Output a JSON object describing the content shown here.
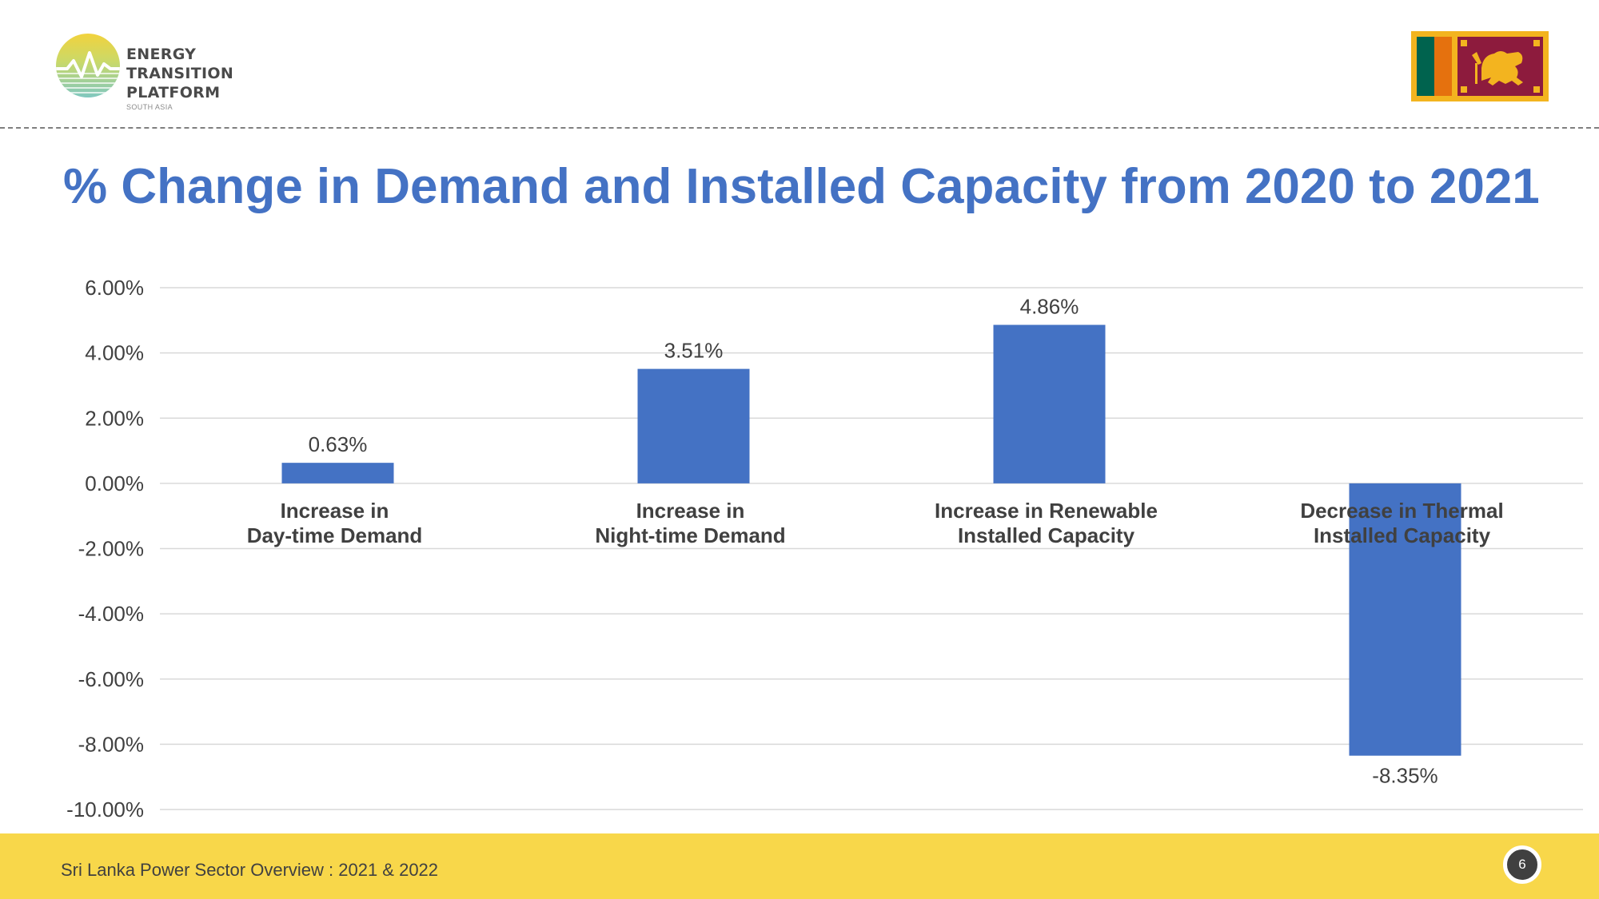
{
  "logo": {
    "line1": "ENERGY TRANSITION",
    "line2": "PLATFORM",
    "line3": "SOUTH ASIA"
  },
  "colors": {
    "accent": "#4472c4",
    "footer": "#f8d74a",
    "text": "#404040",
    "flag_border": "#f3b41f",
    "flag_green": "#00634e",
    "flag_orange": "#e5710e",
    "flag_maroon": "#8d1b3d"
  },
  "title": "% Change in Demand and Installed Capacity from 2020 to 2021",
  "chart_data": {
    "type": "bar",
    "title": "% Change in Demand and Installed Capacity from 2020 to 2021",
    "categories": [
      [
        "Increase in",
        "Day-time Demand"
      ],
      [
        "Increase in",
        "Night-time Demand"
      ],
      [
        "Increase in Renewable",
        "Installed Capacity"
      ],
      [
        "Decrease in Thermal",
        "Installed Capacity"
      ]
    ],
    "values": [
      0.63,
      3.51,
      4.86,
      -8.35
    ],
    "value_labels": [
      "0.63%",
      "3.51%",
      "4.86%",
      "-8.35%"
    ],
    "yticks": [
      6,
      4,
      2,
      0,
      -2,
      -4,
      -6,
      -8,
      -10
    ],
    "ytick_labels": [
      "6.00%",
      "4.00%",
      "2.00%",
      "0.00%",
      "-2.00%",
      "-4.00%",
      "-6.00%",
      "-8.00%",
      "-10.00%"
    ],
    "ylim": [
      -10,
      6
    ],
    "xlabel": "",
    "ylabel": "",
    "grid": true,
    "legend": "none",
    "bar_color": "#4472c4"
  },
  "footer": {
    "text": "Sri Lanka Power Sector Overview : 2021 & 2022",
    "page": "6"
  }
}
